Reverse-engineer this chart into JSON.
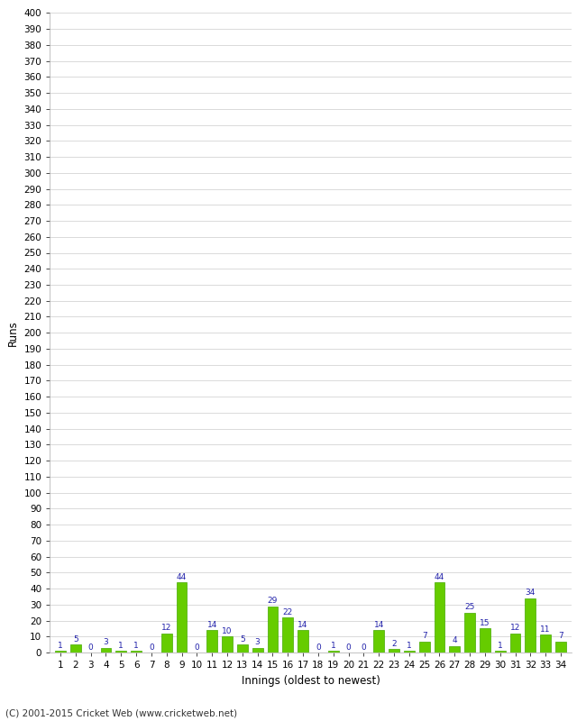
{
  "innings": [
    1,
    2,
    3,
    4,
    5,
    6,
    7,
    8,
    9,
    10,
    11,
    12,
    13,
    14,
    15,
    16,
    17,
    18,
    19,
    20,
    21,
    22,
    23,
    24,
    25,
    26,
    27,
    28,
    29,
    30,
    31,
    32,
    33,
    34
  ],
  "runs": [
    1,
    5,
    0,
    3,
    1,
    1,
    0,
    12,
    44,
    0,
    14,
    10,
    5,
    3,
    29,
    22,
    14,
    0,
    1,
    0,
    0,
    14,
    2,
    1,
    7,
    44,
    4,
    25,
    15,
    1,
    12,
    34,
    11,
    7
  ],
  "bar_color": "#66cc00",
  "bar_edge_color": "#44aa00",
  "label_color": "#2222aa",
  "xlabel": "Innings (oldest to newest)",
  "ylabel": "Runs",
  "ylim": [
    0,
    400
  ],
  "ytick_step": 10,
  "background_color": "#ffffff",
  "grid_color": "#cccccc",
  "footer": "(C) 2001-2015 Cricket Web (www.cricketweb.net)"
}
